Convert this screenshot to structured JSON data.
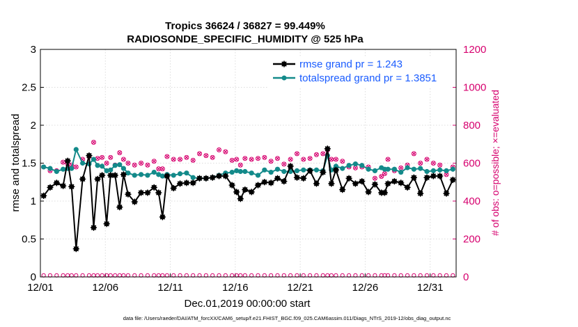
{
  "chart_data": {
    "type": "line",
    "title": "Tropics 36624 / 36827 = 99.449%",
    "subtitle": "RADIOSONDE_SPECIFIC_HUMIDITY @ 525 hPa",
    "xlabel": "Dec.01,2019 00:00:00 start",
    "ylabel": "rmse and totalspread",
    "ylabel_right": "# of obs: o=possible; ×=evaluated",
    "xlim": [
      0,
      31
    ],
    "ylim": [
      0,
      3
    ],
    "ylim_right": [
      0,
      1200
    ],
    "x_tick_values": [
      0,
      5,
      10,
      15,
      20,
      25,
      30
    ],
    "x_tick_labels": [
      "12/01",
      "12/06",
      "12/11",
      "12/16",
      "12/21",
      "12/26",
      "12/31"
    ],
    "y_ticks": [
      "0",
      "0.5",
      "1",
      "1.5",
      "2",
      "2.5",
      "3"
    ],
    "y_ticks_right": [
      "0",
      "200",
      "400",
      "600",
      "800",
      "1000",
      "1200"
    ],
    "legend": {
      "position": "top-right",
      "entries": [
        "rmse grand pr = 1.243",
        "totalspread grand pr = 1.3851"
      ]
    },
    "colors": {
      "rmse": "#000000",
      "spread": "#138a8a",
      "obs": "#d6006e"
    },
    "series": [
      {
        "name": "rmse",
        "points": [
          [
            0.25,
            1.07
          ],
          [
            0.75,
            1.18
          ],
          [
            1.25,
            1.24
          ],
          [
            1.75,
            1.2
          ],
          [
            2.1,
            1.53
          ],
          [
            2.4,
            1.19
          ],
          [
            2.75,
            0.37
          ],
          [
            3.25,
            1.29
          ],
          [
            3.75,
            1.6
          ],
          [
            4.1,
            0.65
          ],
          [
            4.4,
            1.29
          ],
          [
            4.75,
            1.34
          ],
          [
            5.1,
            0.7
          ],
          [
            5.4,
            1.34
          ],
          [
            5.75,
            1.34
          ],
          [
            6.1,
            0.92
          ],
          [
            6.4,
            1.35
          ],
          [
            6.75,
            1.09
          ],
          [
            7.25,
            0.99
          ],
          [
            7.75,
            1.11
          ],
          [
            8.25,
            1.11
          ],
          [
            8.75,
            1.18
          ],
          [
            9.1,
            1.11
          ],
          [
            9.4,
            0.79
          ],
          [
            9.75,
            1.33
          ],
          [
            10.25,
            1.17
          ],
          [
            10.75,
            1.23
          ],
          [
            11.25,
            1.24
          ],
          [
            11.75,
            1.24
          ],
          [
            12.25,
            1.3
          ],
          [
            12.75,
            1.3
          ],
          [
            13.25,
            1.31
          ],
          [
            13.75,
            1.33
          ],
          [
            14.25,
            1.33
          ],
          [
            14.75,
            1.21
          ],
          [
            15.1,
            1.12
          ],
          [
            15.4,
            1.03
          ],
          [
            15.75,
            1.15
          ],
          [
            16.25,
            1.12
          ],
          [
            16.75,
            1.21
          ],
          [
            17.25,
            1.25
          ],
          [
            17.75,
            1.24
          ],
          [
            18.25,
            1.3
          ],
          [
            18.75,
            1.26
          ],
          [
            19.25,
            1.46
          ],
          [
            19.75,
            1.31
          ],
          [
            20.25,
            1.3
          ],
          [
            20.75,
            1.4
          ],
          [
            21.25,
            1.23
          ],
          [
            21.75,
            1.38
          ],
          [
            22.1,
            1.69
          ],
          [
            22.4,
            1.23
          ],
          [
            22.75,
            1.41
          ],
          [
            23.25,
            1.15
          ],
          [
            23.75,
            1.3
          ],
          [
            24.25,
            1.23
          ],
          [
            24.75,
            1.26
          ],
          [
            25.25,
            1.12
          ],
          [
            25.75,
            1.22
          ],
          [
            26.25,
            1.11
          ],
          [
            26.5,
            1.11
          ],
          [
            26.75,
            1.23
          ],
          [
            27.25,
            1.26
          ],
          [
            27.75,
            1.24
          ],
          [
            28.25,
            1.18
          ],
          [
            28.75,
            1.31
          ],
          [
            29.25,
            1.1
          ],
          [
            29.75,
            1.31
          ],
          [
            30.25,
            1.33
          ],
          [
            30.75,
            1.33
          ],
          [
            31.25,
            1.1
          ],
          [
            31.75,
            1.28
          ]
        ]
      },
      {
        "name": "totalspread",
        "points": [
          [
            0.25,
            1.45
          ],
          [
            0.75,
            1.43
          ],
          [
            1.25,
            1.39
          ],
          [
            1.75,
            1.42
          ],
          [
            2.1,
            1.43
          ],
          [
            2.4,
            1.43
          ],
          [
            2.75,
            1.68
          ],
          [
            3.25,
            1.5
          ],
          [
            3.75,
            1.49
          ],
          [
            4.1,
            1.55
          ],
          [
            4.4,
            1.47
          ],
          [
            4.75,
            1.46
          ],
          [
            5.1,
            1.4
          ],
          [
            5.4,
            1.41
          ],
          [
            5.75,
            1.47
          ],
          [
            6.1,
            1.48
          ],
          [
            6.4,
            1.43
          ],
          [
            6.75,
            1.37
          ],
          [
            7.25,
            1.34
          ],
          [
            7.75,
            1.35
          ],
          [
            8.25,
            1.34
          ],
          [
            8.75,
            1.38
          ],
          [
            9.1,
            1.35
          ],
          [
            9.4,
            1.33
          ],
          [
            9.75,
            1.35
          ],
          [
            10.25,
            1.34
          ],
          [
            10.75,
            1.36
          ],
          [
            11.25,
            1.37
          ],
          [
            11.75,
            1.31
          ],
          [
            12.25,
            1.3
          ],
          [
            12.75,
            1.3
          ],
          [
            13.25,
            1.31
          ],
          [
            13.75,
            1.34
          ],
          [
            14.25,
            1.37
          ],
          [
            14.75,
            1.38
          ],
          [
            15.1,
            1.4
          ],
          [
            15.4,
            1.39
          ],
          [
            15.75,
            1.39
          ],
          [
            16.25,
            1.37
          ],
          [
            16.75,
            1.34
          ],
          [
            17.25,
            1.41
          ],
          [
            17.75,
            1.38
          ],
          [
            18.25,
            1.42
          ],
          [
            18.75,
            1.39
          ],
          [
            19.25,
            1.39
          ],
          [
            19.75,
            1.4
          ],
          [
            20.25,
            1.41
          ],
          [
            20.75,
            1.41
          ],
          [
            21.25,
            1.41
          ],
          [
            21.75,
            1.4
          ],
          [
            22.1,
            1.6
          ],
          [
            22.4,
            1.41
          ],
          [
            22.75,
            1.46
          ],
          [
            23.25,
            1.43
          ],
          [
            23.75,
            1.47
          ],
          [
            24.25,
            1.49
          ],
          [
            24.75,
            1.47
          ],
          [
            25.25,
            1.42
          ],
          [
            25.75,
            1.4
          ],
          [
            26.25,
            1.44
          ],
          [
            26.5,
            1.42
          ],
          [
            26.75,
            1.42
          ],
          [
            27.25,
            1.42
          ],
          [
            27.75,
            1.38
          ],
          [
            28.25,
            1.44
          ],
          [
            28.75,
            1.42
          ],
          [
            29.25,
            1.43
          ],
          [
            29.75,
            1.39
          ],
          [
            30.25,
            1.4
          ],
          [
            30.75,
            1.41
          ],
          [
            31.25,
            1.4
          ],
          [
            31.75,
            1.42
          ]
        ]
      }
    ],
    "obs_possible_low": 8,
    "obs_evaluated_high": [
      [
        0.25,
        580
      ],
      [
        0.75,
        560
      ],
      [
        1.25,
        560
      ],
      [
        1.75,
        605
      ],
      [
        2.1,
        595
      ],
      [
        2.4,
        590
      ],
      [
        2.75,
        580
      ],
      [
        3.25,
        620
      ],
      [
        3.75,
        635
      ],
      [
        4.1,
        710
      ],
      [
        4.4,
        625
      ],
      [
        4.75,
        630
      ],
      [
        5.1,
        600
      ],
      [
        5.4,
        630
      ],
      [
        5.75,
        590
      ],
      [
        6.1,
        655
      ],
      [
        6.4,
        620
      ],
      [
        6.75,
        600
      ],
      [
        7.25,
        590
      ],
      [
        7.75,
        600
      ],
      [
        8.25,
        590
      ],
      [
        8.75,
        610
      ],
      [
        9.1,
        570
      ],
      [
        9.4,
        570
      ],
      [
        9.75,
        635
      ],
      [
        10.25,
        620
      ],
      [
        10.75,
        620
      ],
      [
        11.25,
        630
      ],
      [
        11.75,
        615
      ],
      [
        12.25,
        650
      ],
      [
        12.75,
        640
      ],
      [
        13.25,
        630
      ],
      [
        13.75,
        670
      ],
      [
        14.25,
        660
      ],
      [
        14.75,
        615
      ],
      [
        15.1,
        620
      ],
      [
        15.4,
        590
      ],
      [
        15.75,
        625
      ],
      [
        16.25,
        620
      ],
      [
        16.75,
        625
      ],
      [
        17.25,
        630
      ],
      [
        17.75,
        610
      ],
      [
        18.25,
        625
      ],
      [
        18.75,
        595
      ],
      [
        19.25,
        620
      ],
      [
        19.75,
        650
      ],
      [
        20.25,
        620
      ],
      [
        20.75,
        625
      ],
      [
        21.25,
        645
      ],
      [
        21.75,
        650
      ],
      [
        22.1,
        670
      ],
      [
        22.4,
        620
      ],
      [
        22.75,
        620
      ],
      [
        23.25,
        610
      ],
      [
        23.75,
        580
      ],
      [
        24.25,
        575
      ],
      [
        24.75,
        580
      ],
      [
        25.25,
        580
      ],
      [
        25.75,
        520
      ],
      [
        26.25,
        530
      ],
      [
        26.5,
        545
      ],
      [
        26.75,
        620
      ],
      [
        27.25,
        560
      ],
      [
        27.75,
        575
      ],
      [
        28.25,
        590
      ],
      [
        28.75,
        650
      ],
      [
        29.25,
        600
      ],
      [
        29.75,
        620
      ],
      [
        30.25,
        600
      ],
      [
        30.75,
        590
      ],
      [
        31.25,
        540
      ],
      [
        31.75,
        580
      ]
    ],
    "footer": "data file: /Users/raeder/DAI/ATM_forcXX/CAM6_setup/f.e21.FHIST_BGC.f09_025.CAM6assim.011/Diags_NTrS_2019-12/obs_diag_output.nc"
  }
}
